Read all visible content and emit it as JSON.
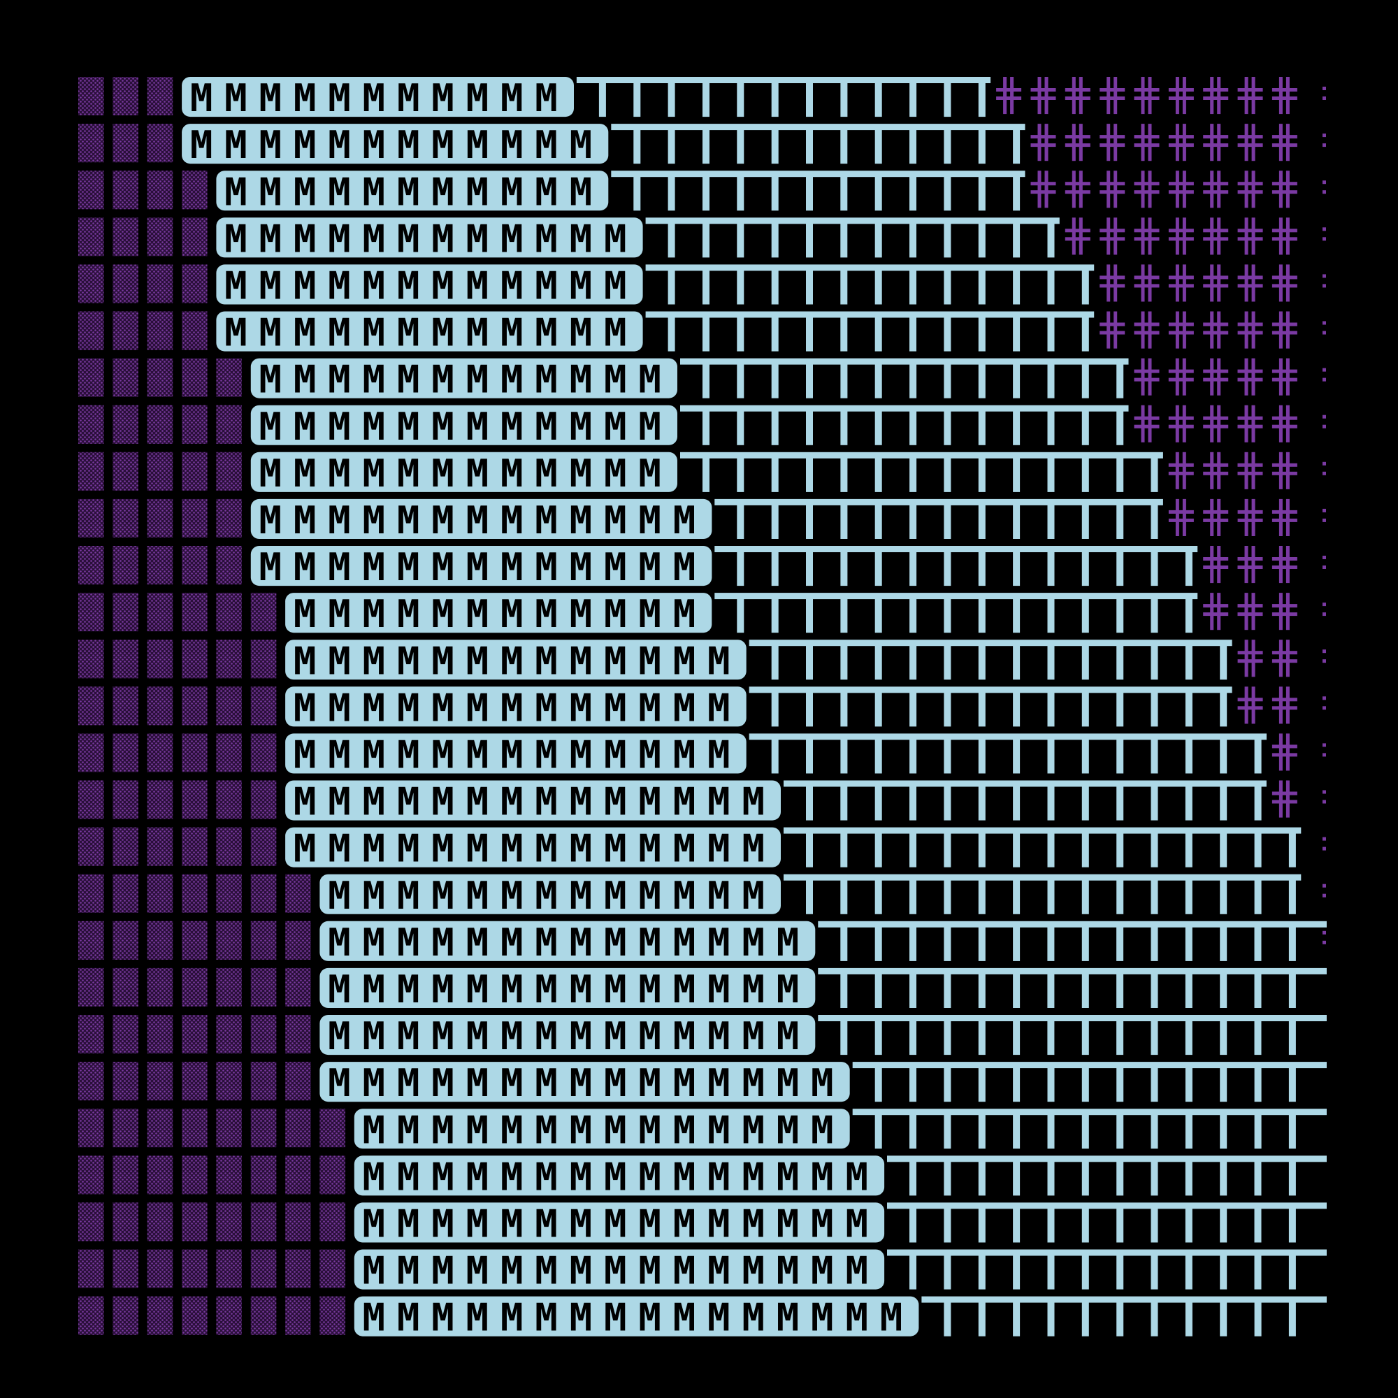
{
  "title": "",
  "colors": {
    "background": "#000000",
    "shade": "#7a3aa0",
    "block": "#add8e6",
    "hash": "#7b3aa3",
    "block_text": "#000000"
  },
  "grid": {
    "rows": 27,
    "cols": 36
  },
  "glyphs": {
    "shade": "shade-block-glyph",
    "letter": "M",
    "bar": "tee-bar-glyph",
    "hash": "double-cross-glyph",
    "edge": "colon-glyph"
  },
  "rows": [
    {
      "shade": 3,
      "letters": 11,
      "bars": 12,
      "hashes": 10,
      "edge": true
    },
    {
      "shade": 3,
      "letters": 12,
      "bars": 12,
      "hashes": 9,
      "edge": true
    },
    {
      "shade": 4,
      "letters": 11,
      "bars": 12,
      "hashes": 9,
      "edge": true
    },
    {
      "shade": 4,
      "letters": 12,
      "bars": 12,
      "hashes": 8,
      "edge": true
    },
    {
      "shade": 4,
      "letters": 12,
      "bars": 13,
      "hashes": 7,
      "edge": true
    },
    {
      "shade": 4,
      "letters": 12,
      "bars": 13,
      "hashes": 7,
      "edge": true
    },
    {
      "shade": 5,
      "letters": 12,
      "bars": 13,
      "hashes": 6,
      "edge": true
    },
    {
      "shade": 5,
      "letters": 12,
      "bars": 13,
      "hashes": 6,
      "edge": true
    },
    {
      "shade": 5,
      "letters": 12,
      "bars": 14,
      "hashes": 5,
      "edge": true
    },
    {
      "shade": 5,
      "letters": 13,
      "bars": 13,
      "hashes": 5,
      "edge": true
    },
    {
      "shade": 5,
      "letters": 13,
      "bars": 14,
      "hashes": 4,
      "edge": true
    },
    {
      "shade": 6,
      "letters": 12,
      "bars": 14,
      "hashes": 4,
      "edge": true
    },
    {
      "shade": 6,
      "letters": 13,
      "bars": 14,
      "hashes": 3,
      "edge": true
    },
    {
      "shade": 6,
      "letters": 13,
      "bars": 14,
      "hashes": 3,
      "edge": true
    },
    {
      "shade": 6,
      "letters": 13,
      "bars": 15,
      "hashes": 2,
      "edge": true
    },
    {
      "shade": 6,
      "letters": 14,
      "bars": 14,
      "hashes": 2,
      "edge": true
    },
    {
      "shade": 6,
      "letters": 14,
      "bars": 15,
      "hashes": 1,
      "edge": true
    },
    {
      "shade": 7,
      "letters": 13,
      "bars": 15,
      "hashes": 1,
      "edge": true
    },
    {
      "shade": 7,
      "letters": 14,
      "bars": 15,
      "hashes": 0,
      "edge": true
    },
    {
      "shade": 7,
      "letters": 14,
      "bars": 15,
      "hashes": 0,
      "edge": false
    },
    {
      "shade": 7,
      "letters": 14,
      "bars": 15,
      "hashes": 0,
      "edge": false
    },
    {
      "shade": 7,
      "letters": 15,
      "bars": 14,
      "hashes": 0,
      "edge": false
    },
    {
      "shade": 8,
      "letters": 14,
      "bars": 14,
      "hashes": 0,
      "edge": false
    },
    {
      "shade": 8,
      "letters": 15,
      "bars": 13,
      "hashes": 0,
      "edge": false
    },
    {
      "shade": 8,
      "letters": 15,
      "bars": 13,
      "hashes": 0,
      "edge": false
    },
    {
      "shade": 8,
      "letters": 15,
      "bars": 13,
      "hashes": 0,
      "edge": false
    },
    {
      "shade": 8,
      "letters": 16,
      "bars": 12,
      "hashes": 0,
      "edge": false
    }
  ]
}
